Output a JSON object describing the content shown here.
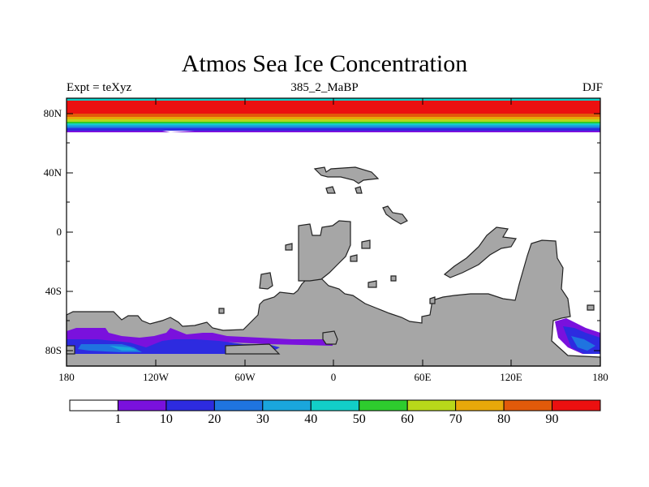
{
  "map": {
    "title": "Atmos Sea Ice Concentration",
    "subtitle_left": "Expt = teXyz",
    "subtitle_center": "385_2_MaBP",
    "subtitle_right": "DJF",
    "lat_ticks": [
      "80N",
      "40N",
      "0",
      "40S",
      "80S"
    ],
    "lon_ticks": [
      "180",
      "120W",
      "60W",
      "0",
      "60E",
      "120E",
      "180"
    ],
    "land_color": "#a6a6a6",
    "ocean_color": "#ffffff"
  },
  "colorbar": {
    "labels": [
      "1",
      "10",
      "20",
      "30",
      "40",
      "50",
      "60",
      "70",
      "80",
      "90"
    ],
    "colors": [
      "#ffffff",
      "#7a11dd",
      "#2d2be0",
      "#1f74e0",
      "#1aa6dc",
      "#12cfc8",
      "#2ecc2e",
      "#b8d81a",
      "#e8a80a",
      "#e25a0a",
      "#ec1010"
    ]
  }
}
